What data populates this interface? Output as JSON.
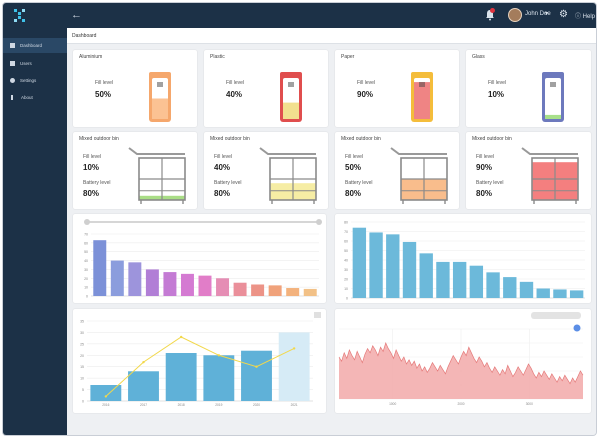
{
  "header": {
    "username": "John Doe",
    "help_label": "Help"
  },
  "sidebar": {
    "items": [
      {
        "label": "Dashboard",
        "icon": "grid-icon"
      },
      {
        "label": "Users",
        "icon": "users-icon"
      },
      {
        "label": "Settings",
        "icon": "gear-icon"
      },
      {
        "label": "About",
        "icon": "info-icon"
      }
    ]
  },
  "tabs": {
    "dashboard": "Dashboard"
  },
  "bins": [
    {
      "title": "Aluminium",
      "fill_label": "Fill level",
      "fill": "50%",
      "fill_fraction": 0.5,
      "color": "#f5a76c",
      "liquid": "#fbc293"
    },
    {
      "title": "Plastic",
      "fill_label": "Fill level",
      "fill": "40%",
      "fill_fraction": 0.4,
      "color": "#e04e4e",
      "liquid": "#f2e08f"
    },
    {
      "title": "Paper",
      "fill_label": "Fill level",
      "fill": "90%",
      "fill_fraction": 0.9,
      "color": "#f4bd3b",
      "liquid": "#ef8484"
    },
    {
      "title": "Glass",
      "fill_label": "Fill level",
      "fill": "10%",
      "fill_fraction": 0.1,
      "color": "#6d79bd",
      "liquid": "#a8e08a"
    }
  ],
  "outdoor_bins": [
    {
      "title": "Mixed outdoor bin",
      "fill_label": "Fill level",
      "fill": "10%",
      "fill_fraction": 0.1,
      "battery_label": "Battery level",
      "battery": "80%",
      "liquid": "#a9dd86"
    },
    {
      "title": "Mixed outdoor bin",
      "fill_label": "Fill level",
      "fill": "40%",
      "fill_fraction": 0.4,
      "battery_label": "Battery level",
      "battery": "80%",
      "liquid": "#f6eda4"
    },
    {
      "title": "Mixed outdoor bin",
      "fill_label": "Fill level",
      "fill": "50%",
      "fill_fraction": 0.5,
      "battery_label": "Battery level",
      "battery": "80%",
      "liquid": "#f9bd8c"
    },
    {
      "title": "Mixed outdoor bin",
      "fill_label": "Fill level",
      "fill": "90%",
      "fill_fraction": 0.9,
      "battery_label": "Battery level",
      "battery": "80%",
      "liquid": "#f47f7f"
    }
  ],
  "chart_data": [
    {
      "type": "bar",
      "values": [
        63,
        40,
        38,
        30,
        27,
        25,
        23,
        20,
        15,
        13,
        12,
        9,
        8
      ],
      "colors": [
        "#7c91d8",
        "#8b9ddd",
        "#9d94dc",
        "#b17ed6",
        "#c47bd4",
        "#d47ad2",
        "#e17dc8",
        "#e58db4",
        "#ea8f9a",
        "#ec9387",
        "#f0a27b",
        "#f3b27d",
        "#f2c187"
      ],
      "ylim": [
        0,
        70
      ],
      "yticks": [
        0,
        10,
        20,
        30,
        40,
        50,
        60,
        70
      ],
      "grid": true
    },
    {
      "type": "bar",
      "values": [
        74,
        69,
        67,
        59,
        47,
        38,
        38,
        34,
        27,
        22,
        17,
        10,
        9,
        8
      ],
      "color": "#6cb9da",
      "ylim": [
        0,
        80
      ],
      "yticks": [
        0,
        10,
        20,
        30,
        40,
        50,
        60,
        70,
        80
      ],
      "grid": true
    },
    {
      "type": "bar+line",
      "categories": [
        "2016",
        "2017",
        "2018",
        "2019",
        "2020",
        "2021"
      ],
      "bar_values": [
        7,
        13,
        21,
        20,
        22,
        30
      ],
      "line_values": [
        2,
        17,
        28,
        20,
        15,
        23
      ],
      "ylim": [
        0,
        35
      ],
      "yticks": [
        0,
        5,
        10,
        15,
        20,
        25,
        30,
        35
      ],
      "bar_color": "#5fb1d8",
      "last_bar_color": "#d6ebf6",
      "line_color": "#f2d84b",
      "grid": true
    },
    {
      "type": "area",
      "color": "#f2a9a9",
      "values": [
        30,
        27,
        33,
        29,
        35,
        31,
        28,
        34,
        30,
        26,
        32,
        36,
        33,
        38,
        35,
        31,
        37,
        34,
        40,
        36,
        33,
        29,
        35,
        31,
        27,
        30,
        25,
        28,
        24,
        27,
        22,
        25,
        20,
        23,
        19,
        22,
        26,
        23,
        20,
        24,
        21,
        18,
        23,
        27,
        31,
        28,
        25,
        30,
        34,
        31,
        37,
        33,
        29,
        26,
        30,
        27,
        23,
        26,
        22,
        19,
        23,
        20,
        17,
        21,
        18,
        24,
        20,
        16,
        19,
        23,
        20,
        17,
        21,
        25,
        22,
        18,
        15,
        19,
        16,
        20,
        17,
        14,
        18,
        15,
        12,
        16,
        13,
        17,
        14,
        11,
        15,
        12,
        16,
        20,
        17
      ],
      "x_ticks": [
        "1000",
        "2000",
        "3000"
      ],
      "ylim": [
        0,
        50
      ],
      "legend_marker_color": "#5b8ee6",
      "grid": true
    }
  ]
}
